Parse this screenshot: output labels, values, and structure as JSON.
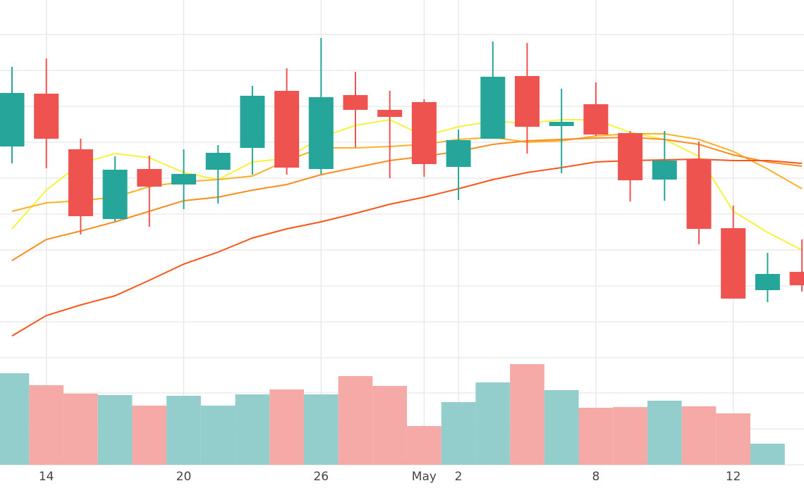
{
  "chart_data": {
    "type": "candlestick",
    "increasing_color": "#26a69a",
    "decreasing_color": "#ef5350",
    "volume_increasing_color": "#93cdcc",
    "volume_decreasing_color": "#f5aaa7",
    "open": [
      300,
      375,
      296,
      197,
      268,
      246,
      267,
      298,
      379,
      268,
      373,
      352,
      363,
      271,
      311,
      400,
      329,
      360,
      319,
      253,
      282,
      184,
      96,
      122
    ],
    "high": [
      413,
      425,
      311,
      286,
      287,
      296,
      302,
      386,
      411,
      454,
      406,
      379,
      367,
      324,
      449,
      447,
      382,
      391,
      322,
      322,
      307,
      216,
      149,
      168
    ],
    "low": [
      276,
      269,
      175,
      194,
      186,
      211,
      219,
      260,
      260,
      261,
      299,
      255,
      257,
      224,
      311,
      290,
      262,
      315,
      222,
      223,
      161,
      84,
      79,
      94
    ],
    "close": [
      376,
      311,
      201,
      267,
      243,
      261,
      291,
      372,
      270,
      370,
      352,
      342,
      275,
      309,
      399,
      328,
      335,
      317,
      252,
      280,
      183,
      84,
      119,
      103
    ],
    "volume": [
      130,
      113,
      101,
      99,
      84,
      98,
      84,
      100,
      107,
      100,
      126,
      112,
      55,
      89,
      117,
      143,
      106,
      81,
      82,
      91,
      83,
      73,
      30,
      null
    ],
    "lines": [
      {
        "color": "#f7f23a",
        "values": [
          183,
          238,
          276,
          290,
          284,
          263,
          253,
          278,
          283,
          313,
          330,
          338,
          315,
          328,
          336,
          333,
          338,
          338,
          320,
          310,
          286,
          208,
          178,
          153
        ]
      },
      {
        "color": "#fbb02a",
        "values": [
          208,
          220,
          223,
          228,
          243,
          250,
          253,
          258,
          280,
          298,
          298,
          300,
          303,
          310,
          313,
          306,
          308,
          315,
          318,
          318,
          310,
          293,
          268,
          240
        ]
      },
      {
        "color": "#fb8c1e",
        "values": [
          138,
          168,
          180,
          193,
          208,
          223,
          228,
          238,
          246,
          260,
          270,
          280,
          286,
          293,
          303,
          308,
          310,
          312,
          313,
          310,
          303,
          288,
          278,
          272
        ]
      },
      {
        "color": "#f9561a",
        "values": [
          31,
          60,
          75,
          88,
          110,
          133,
          150,
          170,
          183,
          193,
          205,
          218,
          228,
          240,
          253,
          263,
          270,
          278,
          280,
          281,
          282,
          280,
          280,
          276
        ]
      }
    ],
    "xlim": [
      -0.349,
      23.06
    ],
    "xticks": [
      {
        "value": 1,
        "label": "14"
      },
      {
        "value": 5,
        "label": "20"
      },
      {
        "value": 9,
        "label": "26"
      },
      {
        "value": 12,
        "label": "May"
      },
      {
        "value": 13,
        "label": "2"
      },
      {
        "value": 17,
        "label": "8"
      },
      {
        "value": 21,
        "label": "12"
      }
    ],
    "ylim": [
      0,
      510
    ],
    "yticks": [
      0,
      51,
      102,
      153,
      204,
      255,
      306,
      357,
      408,
      459
    ],
    "volume_ylim": [
      0,
      153
    ],
    "volume_yticks": [
      0,
      51,
      102
    ],
    "grid": true
  }
}
